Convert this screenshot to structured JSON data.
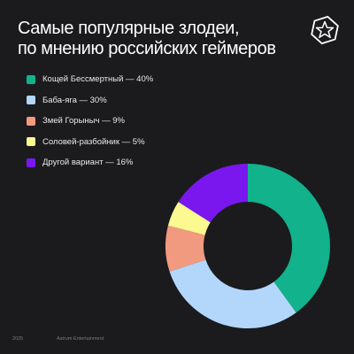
{
  "header": {
    "title_line1": "Самые популярные злодеи,",
    "title_line2": "по мнению российских геймеров"
  },
  "logo": {
    "icon": "star-badge-icon"
  },
  "footer": {
    "year": "2025",
    "company": "Astrum Entertainment"
  },
  "chart_data": {
    "type": "pie",
    "title": "Самые популярные злодеи, по мнению российских геймеров",
    "style": "donut",
    "legend_position": "top-left",
    "series": [
      {
        "name": "Кощей Бессмертный",
        "label": "Кощей Бессмертный — 40%",
        "value": 40,
        "color": "#11b28c"
      },
      {
        "name": "Баба-яга",
        "label": "Баба-яга — 30%",
        "value": 30,
        "color": "#b3d6fb"
      },
      {
        "name": "Змей Горыныч",
        "label": "Змей Горыныч — 9%",
        "value": 9,
        "color": "#f19a7f"
      },
      {
        "name": "Соловей-разбойник",
        "label": "Соловей-разбойник — 5%",
        "value": 5,
        "color": "#fbf98f"
      },
      {
        "name": "Другой вариант",
        "label": "Другой вариант — 16%",
        "value": 16,
        "color": "#7a17ee"
      }
    ]
  }
}
